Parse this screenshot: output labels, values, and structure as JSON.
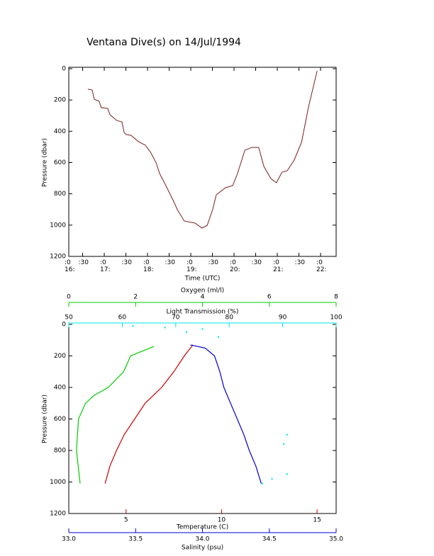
{
  "chart_data": [
    {
      "type": "line",
      "title": "Ventana Dive(s) on 14/Jul/1994",
      "xlabel": "Time (UTC)",
      "ylabel": "Pressure (dbar)",
      "color": "#7a1f1f",
      "x": [
        16.62,
        16.72,
        16.77,
        16.88,
        16.93,
        17.08,
        17.13,
        17.29,
        17.41,
        17.46,
        17.51,
        17.62,
        17.79,
        17.95,
        18.07,
        18.2,
        18.28,
        18.39,
        18.49,
        18.61,
        18.69,
        18.85,
        19.1,
        19.26,
        19.38,
        19.51,
        19.59,
        19.8,
        19.97,
        20.08,
        20.25,
        20.41,
        20.57,
        20.69,
        20.85,
        20.98,
        21.11,
        21.23,
        21.39,
        21.56,
        21.64,
        21.72,
        21.8,
        21.92
      ],
      "values": [
        131,
        136,
        195,
        208,
        249,
        254,
        294,
        331,
        340,
        408,
        421,
        426,
        466,
        489,
        534,
        602,
        670,
        729,
        784,
        852,
        901,
        974,
        987,
        1019,
        1001,
        897,
        806,
        761,
        747,
        670,
        521,
        503,
        503,
        625,
        702,
        729,
        661,
        652,
        584,
        471,
        358,
        245,
        154,
        14
      ],
      "xlim": [
        16.18,
        22.36
      ],
      "xticks": [
        {
          "value": 16.18,
          "label": ":0\n16:"
        },
        {
          "value": 16.5,
          "label": ":30"
        },
        {
          "value": 17,
          "label": ":0\n17:"
        },
        {
          "value": 17.5,
          "label": ":30"
        },
        {
          "value": 18,
          "label": ":0\n18:"
        },
        {
          "value": 18.5,
          "label": ":30"
        },
        {
          "value": 19,
          "label": ":0\n19:"
        },
        {
          "value": 19.5,
          "label": ":30"
        },
        {
          "value": 20,
          "label": ":0\n20:"
        },
        {
          "value": 20.5,
          "label": ":30"
        },
        {
          "value": 21,
          "label": ":0\n21:"
        },
        {
          "value": 21.5,
          "label": ":30"
        },
        {
          "value": 22,
          "label": ":0\n22:"
        }
      ],
      "ylim": [
        1200,
        0
      ],
      "yticks": [
        0,
        200,
        400,
        600,
        800,
        1000,
        1200
      ]
    },
    {
      "type": "profile",
      "ylabel": "Pressure (dbar)",
      "ylim": [
        1200,
        0
      ],
      "yticks": [
        0,
        200,
        400,
        600,
        800,
        1000,
        1200
      ],
      "x_axes": [
        {
          "label": "Temperature (C)",
          "color": "#cc0000",
          "side": "bottom",
          "xlim": [
            2,
            16
          ],
          "xticks": [
            5,
            10,
            15
          ]
        },
        {
          "label": "Salinity (psu)",
          "color": "#0000cc",
          "side": "bottom",
          "xlim": [
            33,
            35
          ],
          "xticks": [
            {
              "value": 33,
              "label": "33.0"
            },
            33.5,
            {
              "value": 34,
              "label": "34.0"
            },
            34.5,
            {
              "value": 35,
              "label": "35.0"
            }
          ]
        },
        {
          "label": "Oxygen (ml/l)",
          "color": "#00cc00",
          "side": "top",
          "xlim": [
            0,
            8
          ],
          "xticks": [
            0,
            2,
            4,
            6,
            8
          ]
        },
        {
          "label": "Light Transmission (%)",
          "color": "#00e5e5",
          "side": "top",
          "xlim": [
            50,
            100
          ],
          "xticks": [
            50,
            60,
            70,
            80,
            90,
            100
          ]
        }
      ],
      "series": [
        {
          "color": "#cc0000",
          "axis": 0,
          "style": "line",
          "x": [
            8.5,
            8.05,
            7.5,
            6.86,
            6.0,
            5.45,
            4.9,
            4.5,
            4.15,
            3.9
          ],
          "values": [
            130,
            200,
            300,
            400,
            500,
            600,
            700,
            800,
            900,
            1010
          ]
        },
        {
          "color": "#0000cc",
          "axis": 1,
          "style": "line",
          "x": [
            33.91,
            34.02,
            34.09,
            34.13,
            34.16,
            34.21,
            34.26,
            34.31,
            34.35,
            34.4,
            34.44
          ],
          "values": [
            130,
            150,
            200,
            300,
            400,
            500,
            600,
            700,
            800,
            900,
            1010
          ]
        },
        {
          "color": "#00cc00",
          "axis": 2,
          "style": "line",
          "x": [
            2.55,
            1.85,
            1.64,
            1.18,
            0.76,
            0.5,
            0.29,
            0.23,
            0.34
          ],
          "values": [
            140,
            200,
            300,
            400,
            450,
            500,
            600,
            800,
            1010
          ]
        },
        {
          "color": "#00e5e5",
          "axis": 3,
          "style": "dots",
          "x": [
            62,
            68,
            72,
            75,
            78,
            86.2,
            88,
            90.8,
            90.2,
            90.8
          ],
          "values": [
            10,
            20,
            50,
            30,
            80,
            1010,
            980,
            950,
            760,
            700
          ]
        }
      ]
    }
  ]
}
